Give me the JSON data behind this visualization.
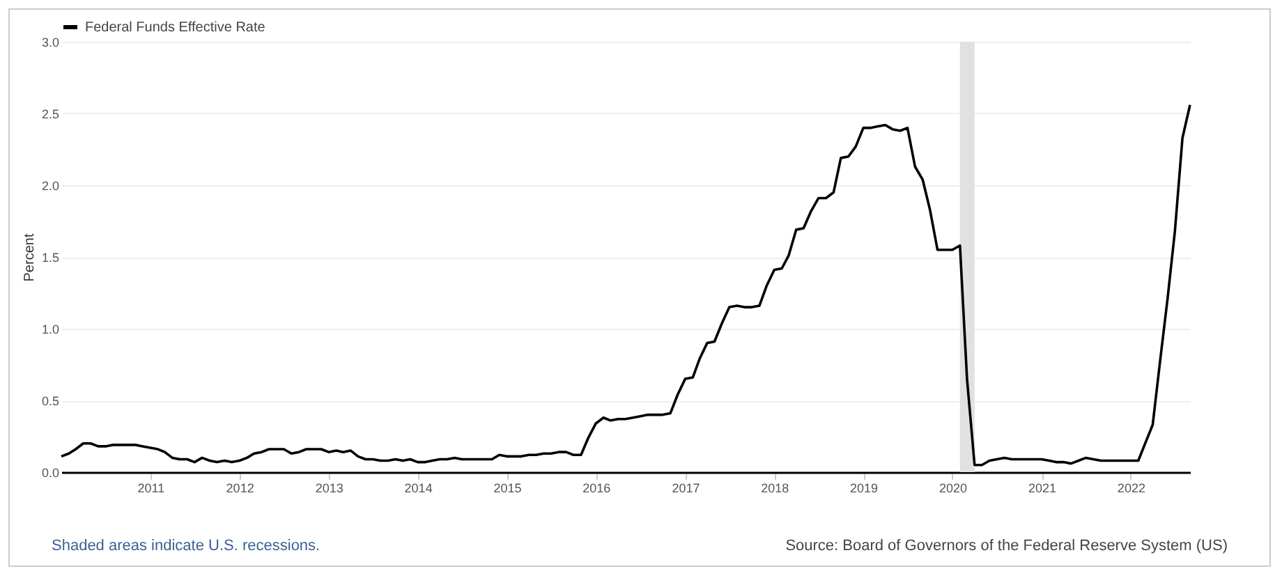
{
  "chart_data": {
    "type": "line",
    "ylabel": "Percent",
    "legend": "top left",
    "grid": "y",
    "annotations": [
      "Shaded areas indicate U.S. recessions.",
      "Source: Board of Governors of the Federal Reserve System (US)"
    ],
    "xlim": [
      "2010-01",
      "2022-09"
    ],
    "xticks": [
      {
        "value": "2011",
        "label": "2011"
      },
      {
        "value": "2012",
        "label": "2012"
      },
      {
        "value": "2013",
        "label": "2013"
      },
      {
        "value": "2014",
        "label": "2014"
      },
      {
        "value": "2015",
        "label": "2015"
      },
      {
        "value": "2016",
        "label": "2016"
      },
      {
        "value": "2017",
        "label": "2017"
      },
      {
        "value": "2018",
        "label": "2018"
      },
      {
        "value": "2019",
        "label": "2019"
      },
      {
        "value": "2020",
        "label": "2020"
      },
      {
        "value": "2021",
        "label": "2021"
      },
      {
        "value": "2022",
        "label": "2022"
      }
    ],
    "ylim": [
      0,
      3
    ],
    "yticks": [
      {
        "value": 0,
        "label": "0.0"
      },
      {
        "value": 0.5,
        "label": "0.5"
      },
      {
        "value": 1,
        "label": "1.0"
      },
      {
        "value": 1.5,
        "label": "1.5"
      },
      {
        "value": 2,
        "label": "2.0"
      },
      {
        "value": 2.5,
        "label": "2.5"
      },
      {
        "value": 3,
        "label": "3.0"
      }
    ],
    "bands": [
      {
        "axis": "x",
        "from": "2020-02",
        "to": "2020-04",
        "color": "#e1e1e1"
      }
    ],
    "x": [
      "2010-01",
      "2010-02",
      "2010-03",
      "2010-04",
      "2010-05",
      "2010-06",
      "2010-07",
      "2010-08",
      "2010-09",
      "2010-10",
      "2010-11",
      "2010-12",
      "2011-01",
      "2011-02",
      "2011-03",
      "2011-04",
      "2011-05",
      "2011-06",
      "2011-07",
      "2011-08",
      "2011-09",
      "2011-10",
      "2011-11",
      "2011-12",
      "2012-01",
      "2012-02",
      "2012-03",
      "2012-04",
      "2012-05",
      "2012-06",
      "2012-07",
      "2012-08",
      "2012-09",
      "2012-10",
      "2012-11",
      "2012-12",
      "2013-01",
      "2013-02",
      "2013-03",
      "2013-04",
      "2013-05",
      "2013-06",
      "2013-07",
      "2013-08",
      "2013-09",
      "2013-10",
      "2013-11",
      "2013-12",
      "2014-01",
      "2014-02",
      "2014-03",
      "2014-04",
      "2014-05",
      "2014-06",
      "2014-07",
      "2014-08",
      "2014-09",
      "2014-10",
      "2014-11",
      "2014-12",
      "2015-01",
      "2015-02",
      "2015-03",
      "2015-04",
      "2015-05",
      "2015-06",
      "2015-07",
      "2015-08",
      "2015-09",
      "2015-10",
      "2015-11",
      "2015-12",
      "2016-01",
      "2016-02",
      "2016-03",
      "2016-04",
      "2016-05",
      "2016-06",
      "2016-07",
      "2016-08",
      "2016-09",
      "2016-10",
      "2016-11",
      "2016-12",
      "2017-01",
      "2017-02",
      "2017-03",
      "2017-04",
      "2017-05",
      "2017-06",
      "2017-07",
      "2017-08",
      "2017-09",
      "2017-10",
      "2017-11",
      "2017-12",
      "2018-01",
      "2018-02",
      "2018-03",
      "2018-04",
      "2018-05",
      "2018-06",
      "2018-07",
      "2018-08",
      "2018-09",
      "2018-10",
      "2018-11",
      "2018-12",
      "2019-01",
      "2019-02",
      "2019-03",
      "2019-04",
      "2019-05",
      "2019-06",
      "2019-07",
      "2019-08",
      "2019-09",
      "2019-10",
      "2019-11",
      "2019-12",
      "2020-01",
      "2020-02",
      "2020-03",
      "2020-04",
      "2020-05",
      "2020-06",
      "2020-07",
      "2020-08",
      "2020-09",
      "2020-10",
      "2020-11",
      "2020-12",
      "2021-01",
      "2021-02",
      "2021-03",
      "2021-04",
      "2021-05",
      "2021-06",
      "2021-07",
      "2021-08",
      "2021-09",
      "2021-10",
      "2021-11",
      "2021-12",
      "2022-01",
      "2022-02",
      "2022-03",
      "2022-04",
      "2022-05",
      "2022-06",
      "2022-07",
      "2022-08",
      "2022-09"
    ],
    "series": [
      {
        "name": "Federal Funds Effective Rate",
        "color": "#000000",
        "values": [
          0.11,
          0.13,
          0.16,
          0.2,
          0.2,
          0.18,
          0.18,
          0.19,
          0.19,
          0.19,
          0.19,
          0.18,
          0.17,
          0.16,
          0.14,
          0.1,
          0.09,
          0.09,
          0.07,
          0.1,
          0.08,
          0.07,
          0.08,
          0.07,
          0.08,
          0.1,
          0.13,
          0.14,
          0.16,
          0.16,
          0.16,
          0.13,
          0.14,
          0.16,
          0.16,
          0.16,
          0.14,
          0.15,
          0.14,
          0.15,
          0.11,
          0.09,
          0.09,
          0.08,
          0.08,
          0.09,
          0.08,
          0.09,
          0.07,
          0.07,
          0.08,
          0.09,
          0.09,
          0.1,
          0.09,
          0.09,
          0.09,
          0.09,
          0.09,
          0.12,
          0.11,
          0.11,
          0.11,
          0.12,
          0.12,
          0.13,
          0.13,
          0.14,
          0.14,
          0.12,
          0.12,
          0.24,
          0.34,
          0.38,
          0.36,
          0.37,
          0.37,
          0.38,
          0.39,
          0.4,
          0.4,
          0.4,
          0.41,
          0.54,
          0.65,
          0.66,
          0.79,
          0.9,
          0.91,
          1.04,
          1.15,
          1.16,
          1.15,
          1.15,
          1.16,
          1.3,
          1.41,
          1.42,
          1.51,
          1.69,
          1.7,
          1.82,
          1.91,
          1.91,
          1.95,
          2.19,
          2.2,
          2.27,
          2.4,
          2.4,
          2.41,
          2.42,
          2.39,
          2.38,
          2.4,
          2.13,
          2.04,
          1.83,
          1.55,
          1.55,
          1.55,
          1.58,
          0.65,
          0.05,
          0.05,
          0.08,
          0.09,
          0.1,
          0.09,
          0.09,
          0.09,
          0.09,
          0.09,
          0.08,
          0.07,
          0.07,
          0.06,
          0.08,
          0.1,
          0.09,
          0.08,
          0.08,
          0.08,
          0.08,
          0.08,
          0.08,
          0.2,
          0.33,
          0.77,
          1.21,
          1.68,
          2.33,
          2.56
        ]
      }
    ]
  }
}
